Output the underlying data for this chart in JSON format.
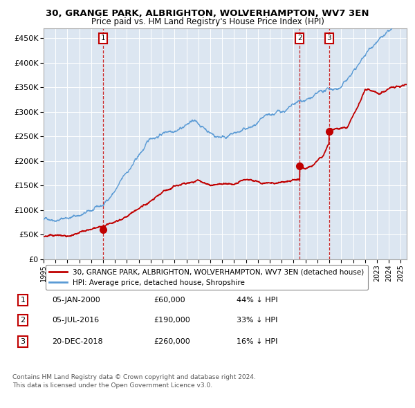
{
  "title": "30, GRANGE PARK, ALBRIGHTON, WOLVERHAMPTON, WV7 3EN",
  "subtitle": "Price paid vs. HM Land Registry's House Price Index (HPI)",
  "legend_line1": "30, GRANGE PARK, ALBRIGHTON, WOLVERHAMPTON, WV7 3EN (detached house)",
  "legend_line2": "HPI: Average price, detached house, Shropshire",
  "footnote1": "Contains HM Land Registry data © Crown copyright and database right 2024.",
  "footnote2": "This data is licensed under the Open Government Licence v3.0.",
  "transactions": [
    {
      "label": "1",
      "date": "05-JAN-2000",
      "price": "£60,000",
      "hpi_pct": "44% ↓ HPI",
      "x_year": 2000.01,
      "y_val": 60000
    },
    {
      "label": "2",
      "date": "05-JUL-2016",
      "price": "£190,000",
      "hpi_pct": "33% ↓ HPI",
      "x_year": 2016.51,
      "y_val": 190000
    },
    {
      "label": "3",
      "date": "20-DEC-2018",
      "price": "£260,000",
      "hpi_pct": "16% ↓ HPI",
      "x_year": 2018.97,
      "y_val": 260000
    }
  ],
  "hpi_color": "#5b9bd5",
  "price_color": "#c00000",
  "background_color": "#dce6f1",
  "ylim": [
    0,
    470000
  ],
  "xlim_start": 1995.0,
  "xlim_end": 2025.5,
  "yticks": [
    0,
    50000,
    100000,
    150000,
    200000,
    250000,
    300000,
    350000,
    400000,
    450000
  ],
  "ytick_labels": [
    "£0",
    "£50K",
    "£100K",
    "£150K",
    "£200K",
    "£250K",
    "£300K",
    "£350K",
    "£400K",
    "£450K"
  ],
  "xtick_years": [
    1995,
    1996,
    1997,
    1998,
    1999,
    2000,
    2001,
    2002,
    2003,
    2004,
    2005,
    2006,
    2007,
    2008,
    2009,
    2010,
    2011,
    2012,
    2013,
    2014,
    2015,
    2016,
    2017,
    2018,
    2019,
    2020,
    2021,
    2022,
    2023,
    2024,
    2025
  ]
}
